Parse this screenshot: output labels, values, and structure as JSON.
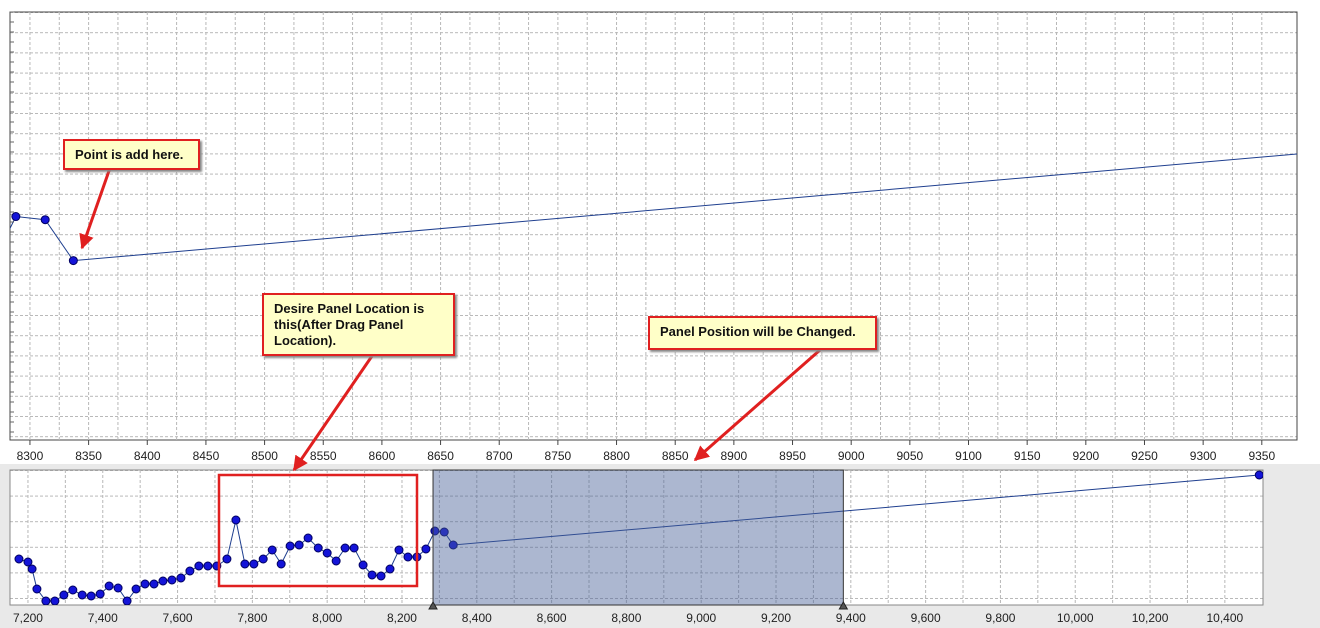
{
  "chart_data": {
    "type": "line",
    "x": [
      7176,
      7200,
      7211,
      7224,
      7248,
      7272,
      7296,
      7320,
      7345,
      7369,
      7393,
      7417,
      7441,
      7465,
      7489,
      7513,
      7537,
      7561,
      7585,
      7609,
      7633,
      7657,
      7681,
      7705,
      7732,
      7756,
      7780,
      7804,
      7829,
      7853,
      7877,
      7901,
      7925,
      7949,
      7976,
      8000,
      8024,
      8048,
      8072,
      8096,
      8120,
      8144,
      8168,
      8192,
      8216,
      8240,
      8264,
      8288,
      8313,
      8337,
      10492
    ],
    "series": [
      {
        "color": "#1f3f8f",
        "marker_color": "#1414d8",
        "values": [
          46,
          43,
          36,
          16,
          4,
          4,
          10,
          15,
          10,
          9,
          11,
          19,
          17,
          4,
          16,
          21,
          21,
          24,
          25,
          27,
          34,
          39,
          39,
          39,
          46,
          85,
          41,
          41,
          46,
          55,
          41,
          59,
          60,
          67,
          57,
          52,
          44,
          57,
          57,
          40,
          30,
          29,
          36,
          55,
          48,
          48,
          56,
          74,
          73,
          60,
          130
        ]
      }
    ],
    "xlim": [
      8283,
      9380
    ],
    "xticks": [
      8300,
      8350,
      8400,
      8450,
      8500,
      8550,
      8600,
      8650,
      8700,
      8750,
      8800,
      8850,
      8900,
      8950,
      9000,
      9050,
      9100,
      9150,
      9200,
      9250,
      9300,
      9350
    ],
    "ylim": [
      3,
      139
    ],
    "grid": true,
    "navigator": {
      "xlim": [
        7152,
        10502
      ],
      "xticks": [
        {
          "value": 7200,
          "label": "7,200"
        },
        {
          "value": 7400,
          "label": "7,400"
        },
        {
          "value": 7600,
          "label": "7,600"
        },
        {
          "value": 7800,
          "label": "7,800"
        },
        {
          "value": 8000,
          "label": "8,000"
        },
        {
          "value": 8200,
          "label": "8,200"
        },
        {
          "value": 8400,
          "label": "8,400"
        },
        {
          "value": 8600,
          "label": "8,600"
        },
        {
          "value": 8800,
          "label": "8,800"
        },
        {
          "value": 9000,
          "label": "9,000"
        },
        {
          "value": 9200,
          "label": "9,200"
        },
        {
          "value": 9400,
          "label": "9,400"
        },
        {
          "value": 9600,
          "label": "9,600"
        },
        {
          "value": 9800,
          "label": "9,800"
        },
        {
          "value": 10000,
          "label": "10,000"
        },
        {
          "value": 10200,
          "label": "10,200"
        },
        {
          "value": 10400,
          "label": "10,400"
        }
      ],
      "ylim": [
        0,
        135
      ]
    },
    "annotations": [
      "Point is add here.",
      "Desire Panel Location is this(After Drag Panel Location).",
      "Panel Position will be Changed."
    ]
  }
}
